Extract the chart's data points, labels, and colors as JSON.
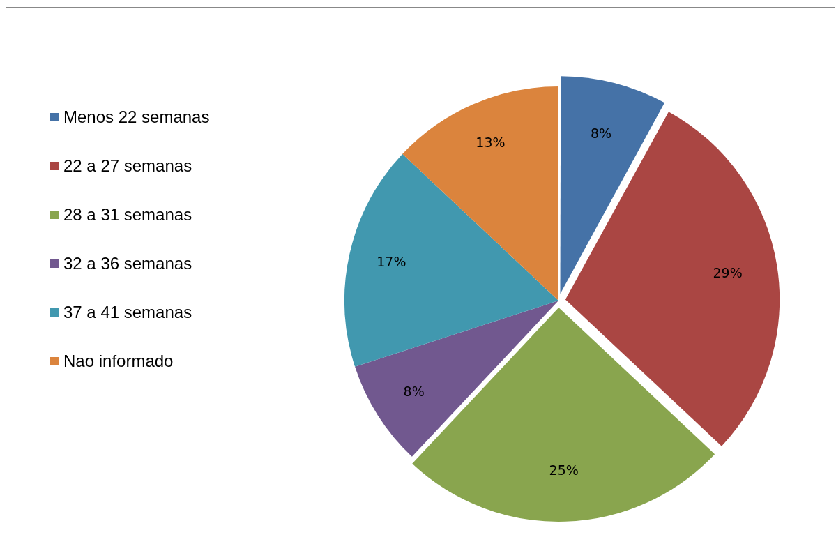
{
  "chart_data": {
    "type": "pie",
    "categories": [
      "Menos 22 semanas",
      "22 a 27 semanas",
      "28 a 31 semanas",
      "32 a 36 semanas",
      "37 a 41 semanas",
      "Nao informado"
    ],
    "values": [
      8,
      29,
      25,
      8,
      17,
      13
    ],
    "value_labels": [
      "8%",
      "29%",
      "25%",
      "8%",
      "17%",
      "13%"
    ],
    "colors": [
      "#4572a7",
      "#aa4643",
      "#89a54e",
      "#71588f",
      "#4198af",
      "#db843d"
    ],
    "legend": "left"
  }
}
